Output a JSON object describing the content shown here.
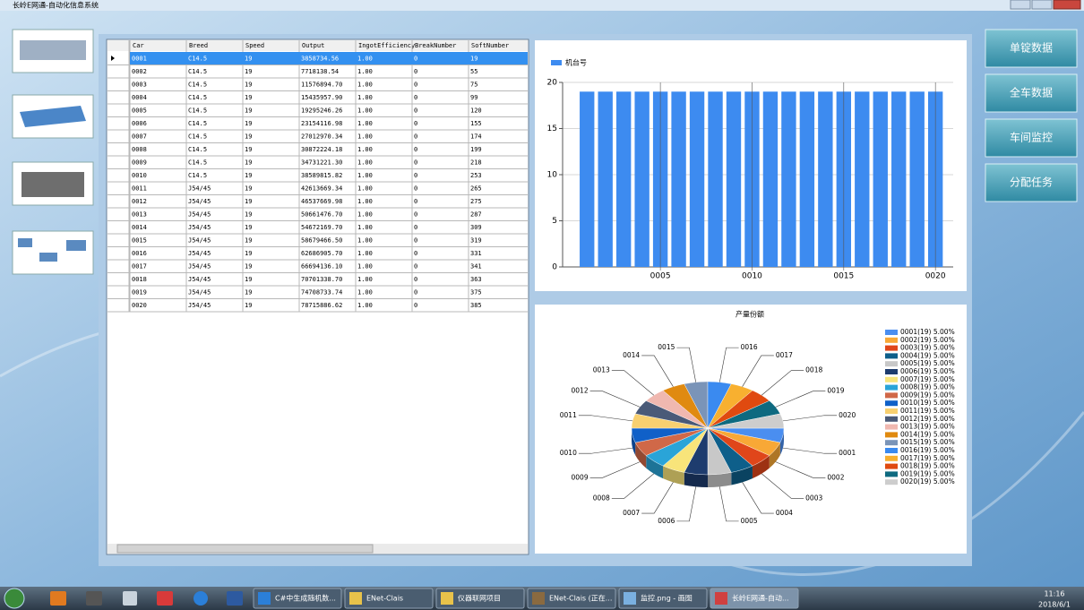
{
  "window": {
    "title": "长岭E网通-自动化信息系统"
  },
  "table": {
    "columns": [
      "Car",
      "Breed",
      "Speed",
      "Output",
      "IngotEfficiency",
      "BreakNumber",
      "SoftNumber"
    ],
    "rows": [
      [
        "0001",
        "C14.5",
        "19",
        "3858734.56",
        "1.00",
        "0",
        "19"
      ],
      [
        "0002",
        "C14.5",
        "19",
        "7718138.54",
        "1.00",
        "0",
        "55"
      ],
      [
        "0003",
        "C14.5",
        "19",
        "11576894.70",
        "1.00",
        "0",
        "75"
      ],
      [
        "0004",
        "C14.5",
        "19",
        "15435957.90",
        "1.00",
        "0",
        "99"
      ],
      [
        "0005",
        "C14.5",
        "19",
        "19295246.26",
        "1.00",
        "0",
        "120"
      ],
      [
        "0006",
        "C14.5",
        "19",
        "23154116.98",
        "1.00",
        "0",
        "155"
      ],
      [
        "0007",
        "C14.5",
        "19",
        "27012970.34",
        "1.00",
        "0",
        "174"
      ],
      [
        "0008",
        "C14.5",
        "19",
        "30872224.18",
        "1.00",
        "0",
        "199"
      ],
      [
        "0009",
        "C14.5",
        "19",
        "34731221.30",
        "1.00",
        "0",
        "218"
      ],
      [
        "0010",
        "C14.5",
        "19",
        "38589815.82",
        "1.00",
        "0",
        "253"
      ],
      [
        "0011",
        "J54/45",
        "19",
        "42613669.34",
        "1.00",
        "0",
        "265"
      ],
      [
        "0012",
        "J54/45",
        "19",
        "46537669.98",
        "1.00",
        "0",
        "275"
      ],
      [
        "0013",
        "J54/45",
        "19",
        "50661476.70",
        "1.00",
        "0",
        "287"
      ],
      [
        "0014",
        "J54/45",
        "19",
        "54672169.70",
        "1.00",
        "0",
        "309"
      ],
      [
        "0015",
        "J54/45",
        "19",
        "58679466.50",
        "1.00",
        "0",
        "319"
      ],
      [
        "0016",
        "J54/45",
        "19",
        "62686905.70",
        "1.00",
        "0",
        "331"
      ],
      [
        "0017",
        "J54/45",
        "19",
        "66694136.10",
        "1.00",
        "0",
        "341"
      ],
      [
        "0018",
        "J54/45",
        "19",
        "70701338.70",
        "1.00",
        "0",
        "363"
      ],
      [
        "0019",
        "J54/45",
        "19",
        "74708733.74",
        "1.00",
        "0",
        "375"
      ],
      [
        "0020",
        "J54/45",
        "19",
        "78715886.62",
        "1.00",
        "0",
        "385"
      ]
    ]
  },
  "chart_data": [
    {
      "type": "bar",
      "categories": [
        null,
        null,
        null,
        null,
        "0005",
        null,
        null,
        null,
        null,
        "0010",
        null,
        null,
        null,
        null,
        "0015",
        null,
        null,
        null,
        null,
        "0020"
      ],
      "series": [
        {
          "name": "机台号",
          "color": "#3d8bf0",
          "values": [
            19,
            19,
            19,
            19,
            19,
            19,
            19,
            19,
            19,
            19,
            19,
            19,
            19,
            19,
            19,
            19,
            19,
            19,
            19,
            19
          ]
        }
      ],
      "ylim": [
        0,
        20
      ],
      "yticks": [
        0,
        5,
        10,
        15,
        20
      ],
      "grid": true,
      "legend": "top-left"
    },
    {
      "type": "pie",
      "title": "产量份额",
      "categories": [
        "0001",
        "0002",
        "0003",
        "0004",
        "0005",
        "0006",
        "0007",
        "0008",
        "0009",
        "0010",
        "0011",
        "0012",
        "0013",
        "0014",
        "0015",
        "0016",
        "0017",
        "0018",
        "0019",
        "0020"
      ],
      "values": [
        5,
        5,
        5,
        5,
        5,
        5,
        5,
        5,
        5,
        5,
        5,
        5,
        5,
        5,
        5,
        5,
        5,
        5,
        5,
        5
      ],
      "value_labels": [
        "0001(19) 5.00%",
        "0002(19) 5.00%",
        "0003(19) 5.00%",
        "0004(19) 5.00%",
        "0005(19) 5.00%",
        "0006(19) 5.00%",
        "0007(19) 5.00%",
        "0008(19) 5.00%",
        "0009(19) 5.00%",
        "0010(19) 5.00%",
        "0011(19) 5.00%",
        "0012(19) 5.00%",
        "0013(19) 5.00%",
        "0014(19) 5.00%",
        "0015(19) 5.00%",
        "0016(19) 5.00%",
        "0017(19) 5.00%",
        "0018(19) 5.00%",
        "0019(19) 5.00%",
        "0020(19) 5.00%"
      ],
      "colors": [
        "#4a8ef0",
        "#f8a836",
        "#e0461a",
        "#0e5f8a",
        "#c8c8c8",
        "#1e3c6e",
        "#f8e47a",
        "#2aa4d8",
        "#d06848",
        "#1060c8",
        "#f8d070",
        "#4a5a78",
        "#f0b8b0",
        "#e08a10",
        "#7a94b8",
        "#3a8af0",
        "#f8b030",
        "#e04a10",
        "#0e6a80",
        "#cdcdcd"
      ],
      "legend": "right"
    }
  ],
  "buttons": [
    "单锭数据",
    "全车数据",
    "车间监控",
    "分配任务"
  ],
  "taskbar": {
    "items": [
      "C#中生成随机数...",
      "ENet-Clais",
      "仪器联网项目",
      "ENet-Clais (正在...",
      "监控.png - 画图",
      "长岭E网通-自动..."
    ],
    "time": "11:16",
    "date": "2018/6/1"
  }
}
